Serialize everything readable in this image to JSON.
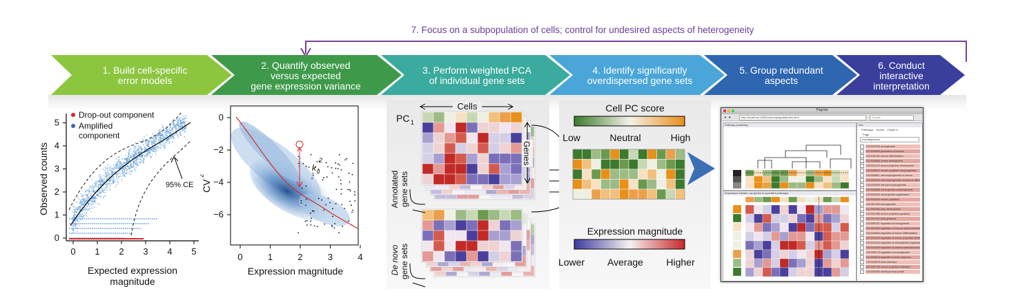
{
  "feedback_note": "7. Focus on a subpopulation of cells; control for undesired aspects of heterogeneity",
  "steps": [
    {
      "number": "1.",
      "lines": [
        "1. Build cell-specific",
        "error models"
      ],
      "color": "#8cc63f"
    },
    {
      "number": "2.",
      "lines": [
        "2. Quantify observed",
        "versus expected",
        "gene expression variance"
      ],
      "color": "#3e9a4a"
    },
    {
      "number": "3.",
      "lines": [
        "3. Perform weighted PCA",
        "of individual gene sets"
      ],
      "color": "#3aab9e"
    },
    {
      "number": "4.",
      "lines": [
        "4. Identify significantly",
        "overdispersed gene sets"
      ],
      "color": "#4aa6d8"
    },
    {
      "number": "5.",
      "lines": [
        "5. Group redundant",
        "aspects"
      ],
      "color": "#2f66b0"
    },
    {
      "number": "6.",
      "lines": [
        "6. Conduct",
        "interactive",
        "interpretation"
      ],
      "color": "#3a3f9c"
    }
  ],
  "panel1": {
    "legend": [
      "Drop-out component",
      "Amplified",
      "component"
    ],
    "annotation": "95% CE",
    "ylabel": "Observed counts",
    "xlabel": [
      "Expected expression",
      "magnitude"
    ],
    "xticks": [
      "0",
      "1",
      "2",
      "3",
      "4",
      "5"
    ],
    "yticks": [
      "0",
      "1",
      "2",
      "3",
      "4",
      "5"
    ]
  },
  "panel2": {
    "ylabel": "CV",
    "ylabel_sup": "2",
    "xlabel": "Expression magnitude",
    "xticks": [
      "0",
      "1",
      "2",
      "3",
      "4"
    ],
    "yticks": [
      "0",
      "−2",
      "−4",
      "−6"
    ],
    "annotation": "k",
    "annotation_sub": "g",
    "annotation_sup": "2"
  },
  "panel3": {
    "cells_label": "Cells",
    "pc_label": "PC",
    "pc_sub": "1",
    "genes_label": "Genes",
    "annotated_label": [
      "Annotated",
      "gene sets"
    ],
    "denovo_label_italic": "De novo",
    "denovo_label_rest": "gene sets"
  },
  "panel4": {
    "score_title": "Cell PC score",
    "score_ticks": [
      "Low",
      "Neutral",
      "High"
    ],
    "expr_title": "Expression magnitude",
    "expr_ticks": [
      "Lower",
      "Average",
      "Higher"
    ]
  },
  "panel6": {
    "window_title": "Pagoda",
    "url": "http://localhost:1468/custom/pagoda/index.html",
    "search_placeholder": "Google",
    "clustering_title": "Pathway clustering",
    "details_title": "Expression Details: top genes in specified pathways",
    "side_tabs": [
      "Pathways",
      "Genes",
      "Cluster k"
    ],
    "side_page": "Page",
    "side_search": "overdispersion",
    "go_items": [
      "GO:0022008 neurogenesis",
      "GO:0048699 generation of neurons",
      "GO:0030182 neuron differentiation",
      "GO:0048666 neuron development",
      "GO:0031175 neuron projection development",
      "GO:0048812 neuron projection morphogenesis",
      "GO:0048667 cell morphogenesis in neuron",
      "GO:0000904 cell morphogenesis involved in differentiation",
      "GO:0032990 cell part morphogenesis",
      "GO:0048858 cell projection morphogenesis",
      "GO:0030030 cell projection organization",
      "GO:0043005 neuron projection",
      "GO:0007409 axonogenesis",
      "GO:0061564 axon development",
      "GO:0097485 neuron projection guidance",
      "GO:0007411 axon guidance",
      "GO:0050767 regulation of neurogenesis",
      "GO:0051960 regulation of nervous system development",
      "GO:0045664 regulation of neuron differentiation",
      "GO:0010975 regulation of neuron projection development",
      "GO:0031344 regulation of cell projection organization",
      "GO:0120035 regulation of plasma membrane bounded cell projection organization",
      "GO:0050770 regulation of axonogenesis",
      "GO:0030516 regulation of axon extension",
      "GO:0048675 axon extension",
      "GO:1990138 neuron projection extension",
      "GO:0060560 developmental growth"
    ]
  },
  "colors": {
    "arrow_purple": "#7b3f99",
    "cell_score_low": "#3c7a2e",
    "cell_score_high": "#e8901a",
    "expr_low": "#3c3c9e",
    "expr_high": "#c8282a"
  }
}
